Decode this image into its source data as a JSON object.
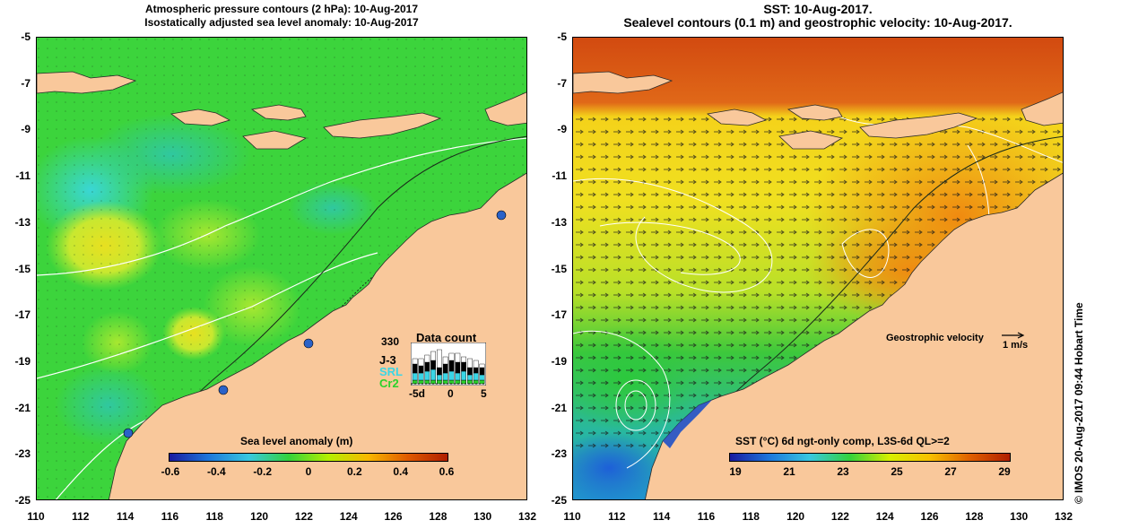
{
  "left": {
    "title_line1": "Atmospheric pressure contours (2 hPa): 10-Aug-2017",
    "title_line2": "Isostatically adjusted sea level anomaly: 10-Aug-2017",
    "colorbar_title": "Sea level anomaly (m)",
    "colorbar_ticks": [
      "-0.6",
      "-0.4",
      "-0.2",
      "0",
      "0.2",
      "0.4",
      "0.6"
    ],
    "colorbar_colors": [
      "#1a1aa0",
      "#1e78dc",
      "#38c8e0",
      "#34d23c",
      "#b4f000",
      "#f8b800",
      "#e05a00",
      "#b01e00"
    ],
    "inset": {
      "count_label": "330",
      "title": "Data count",
      "mission1": "J-3",
      "mission2": "SRL",
      "mission3": "Cr2",
      "axis_ticks": [
        "-5d",
        "0",
        "5"
      ],
      "mission1_color": "#000000",
      "mission2_color": "#3ad6e6",
      "mission3_color": "#2bd22b"
    }
  },
  "right": {
    "title_line1": "SST: 10-Aug-2017.",
    "title_line2": "Sealevel contours (0.1 m) and geostrophic velocity: 10-Aug-2017.",
    "colorbar_title": "SST (°C) 6d ngt-only comp, L3S-6d QL>=2",
    "colorbar_ticks": [
      "19",
      "21",
      "23",
      "25",
      "27",
      "29"
    ],
    "colorbar_colors": [
      "#1a1aa0",
      "#1e78dc",
      "#38c8e0",
      "#34d23c",
      "#d8f000",
      "#f8c000",
      "#e06000",
      "#b01e00"
    ],
    "geo_label": "Geostrophic velocity",
    "geo_unit": "1 m/s"
  },
  "axes": {
    "y_ticks": [
      "-5",
      "-7",
      "-9",
      "-11",
      "-13",
      "-15",
      "-17",
      "-19",
      "-21",
      "-23",
      "-25"
    ],
    "x_ticks": [
      "110",
      "112",
      "114",
      "116",
      "118",
      "120",
      "122",
      "124",
      "126",
      "128",
      "130",
      "132"
    ]
  },
  "colors": {
    "land": "#f9c89b",
    "sla_base": "#3cd43c",
    "sst_warm": "#f08a10",
    "sst_hot": "#d85010",
    "sst_mid": "#f4d21a",
    "sst_cool": "#3cc83c"
  },
  "credit": "© IMOS 20-Aug-2017 09:44 Hobart Time"
}
